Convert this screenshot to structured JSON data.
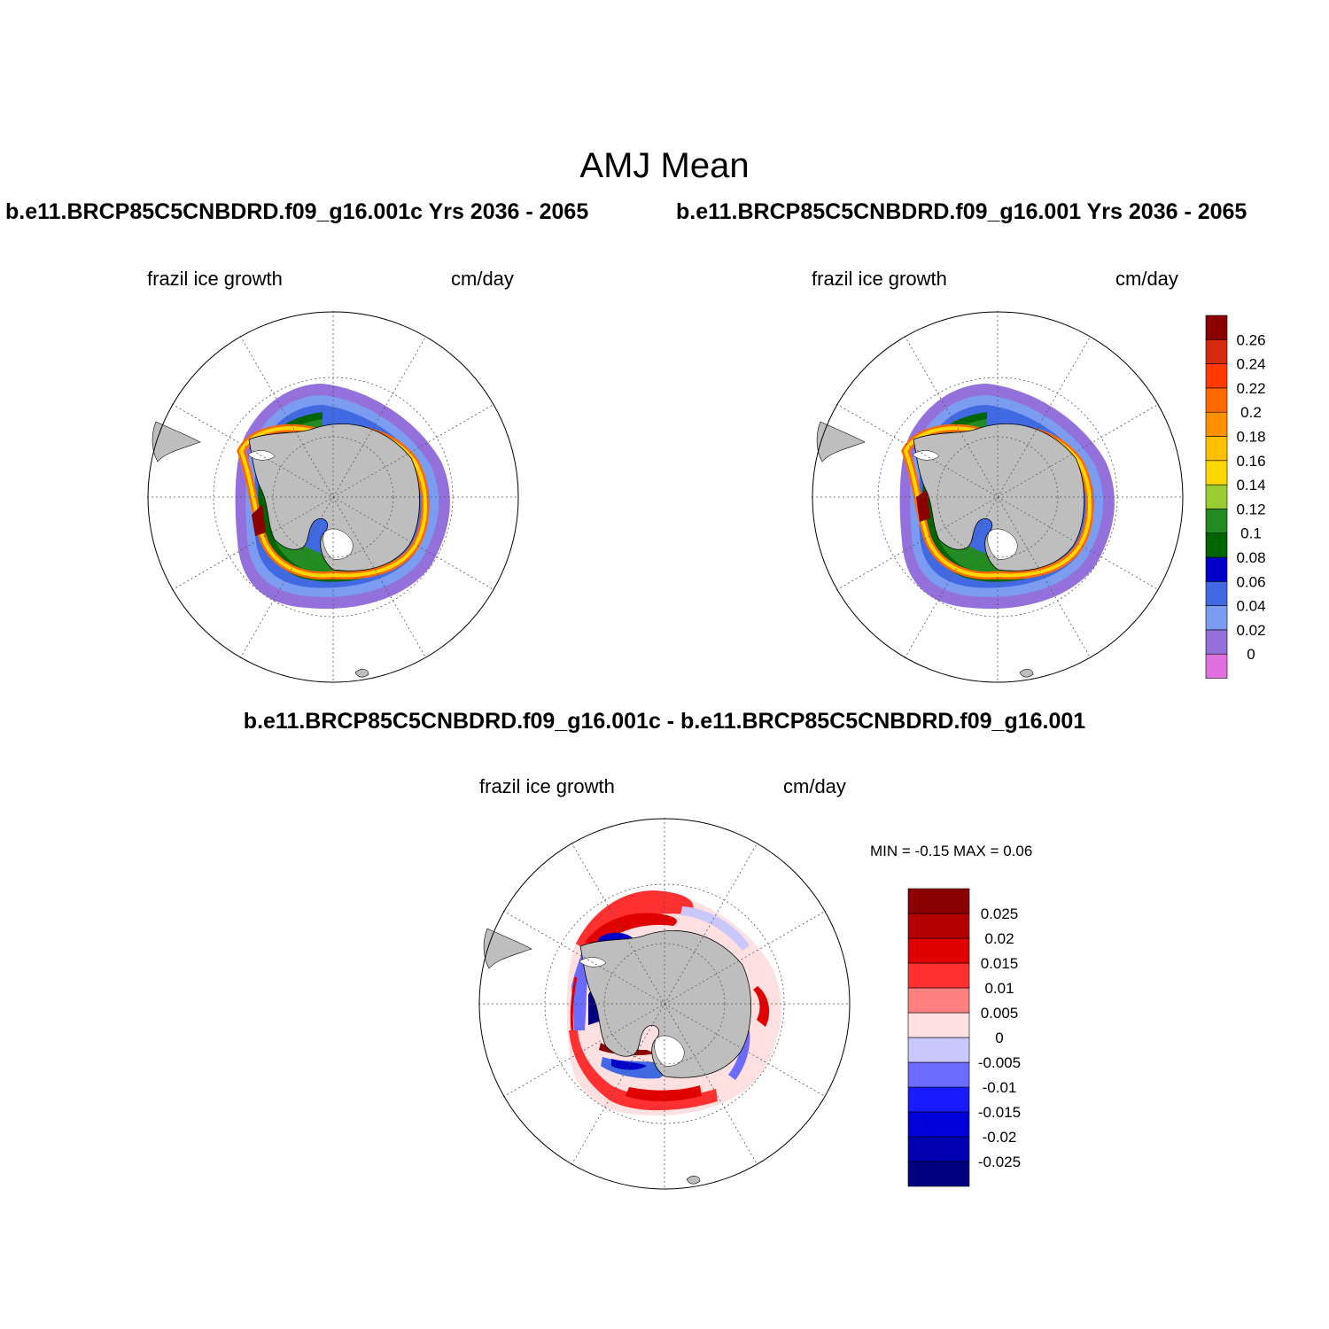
{
  "main_title": "AMJ Mean",
  "panels": {
    "left": {
      "title": "b.e11.BRCP85C5CNBDRD.f09_g16.001c  Yrs 2036 - 2065",
      "variable": "frazil ice growth",
      "units": "cm/day"
    },
    "right": {
      "title": "b.e11.BRCP85C5CNBDRD.f09_g16.001  Yrs 2036 - 2065",
      "variable": "frazil ice growth",
      "units": "cm/day"
    },
    "diff": {
      "title": "b.e11.BRCP85C5CNBDRD.f09_g16.001c - b.e11.BRCP85C5CNBDRD.f09_g16.001",
      "variable": "frazil ice growth",
      "units": "cm/day",
      "minmax": "MIN =  -0.15 MAX =   0.06"
    }
  },
  "colorbar_main": {
    "colors": [
      "#e070e0",
      "#9370db",
      "#7b9cf0",
      "#4169e1",
      "#0000c8",
      "#006400",
      "#228b22",
      "#9acd32",
      "#ffd700",
      "#ffc000",
      "#ff9000",
      "#ff6a00",
      "#ff3a00",
      "#d42a10",
      "#8b0000"
    ],
    "labels": [
      "0",
      "0.02",
      "0.04",
      "0.06",
      "0.08",
      "0.1",
      "0.12",
      "0.14",
      "0.16",
      "0.18",
      "0.2",
      "0.22",
      "0.24",
      "0.26"
    ]
  },
  "colorbar_diff": {
    "colors": [
      "#000080",
      "#0000b0",
      "#0000d8",
      "#1a1aff",
      "#6b6bff",
      "#c8c8ff",
      "#ffe0e0",
      "#ff8080",
      "#ff3030",
      "#e00000",
      "#b40000",
      "#8b0000"
    ],
    "labels": [
      "-0.025",
      "-0.02",
      "-0.015",
      "-0.01",
      "-0.005",
      "0",
      "0.005",
      "0.01",
      "0.015",
      "0.02",
      "0.025"
    ]
  },
  "map_colors": {
    "land": "#bebebe",
    "ice_shelf": "#ffffff",
    "graticule": "#555555"
  }
}
